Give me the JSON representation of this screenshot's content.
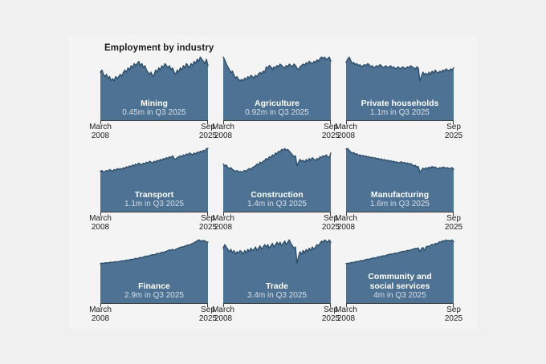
{
  "title": "Employment by industry",
  "colors": {
    "background": "#f0f0f0",
    "card": "#f4f4f4",
    "area_fill": "#4d7293",
    "area_stroke": "#2e4f6b",
    "axis": "#3c3c3c",
    "axis_text": "#1d1d1d",
    "series_name_text": "#ffffff",
    "series_value_text": "#ffffffc4"
  },
  "axis": {
    "left_line1": "March",
    "left_line2": "2008",
    "right_line1": "Sep",
    "right_line2": "2025"
  },
  "chart_data": {
    "type": "area",
    "title": "Employment by industry",
    "layout": "3x3 small multiples",
    "x_range": [
      "March 2008",
      "Sep 2025"
    ],
    "frequency": "quarterly",
    "unit": "millions of people",
    "grid": "off",
    "legend": "none",
    "series": [
      {
        "name": "Mining",
        "value_label": "0.45m in Q3 2025",
        "latest_value_m": 0.45,
        "values": [
          0.42,
          0.43,
          0.41,
          0.4,
          0.41,
          0.39,
          0.4,
          0.38,
          0.39,
          0.38,
          0.4,
          0.39,
          0.4,
          0.41,
          0.4,
          0.42,
          0.43,
          0.42,
          0.44,
          0.43,
          0.45,
          0.44,
          0.46,
          0.45,
          0.46,
          0.47,
          0.45,
          0.46,
          0.44,
          0.45,
          0.43,
          0.42,
          0.41,
          0.42,
          0.4,
          0.41,
          0.43,
          0.42,
          0.44,
          0.43,
          0.45,
          0.44,
          0.46,
          0.45,
          0.44,
          0.45,
          0.43,
          0.44,
          0.42,
          0.41,
          0.43,
          0.42,
          0.44,
          0.43,
          0.45,
          0.44,
          0.46,
          0.45,
          0.44,
          0.46,
          0.45,
          0.47,
          0.46,
          0.48,
          0.47,
          0.49,
          0.48,
          0.47,
          0.46,
          0.48,
          0.45
        ]
      },
      {
        "name": "Agriculture",
        "value_label": "0.92m in Q3 2025",
        "latest_value_m": 0.92,
        "values": [
          0.95,
          0.93,
          0.9,
          0.88,
          0.86,
          0.84,
          0.85,
          0.82,
          0.8,
          0.81,
          0.79,
          0.78,
          0.79,
          0.78,
          0.8,
          0.79,
          0.81,
          0.8,
          0.82,
          0.81,
          0.8,
          0.82,
          0.81,
          0.83,
          0.84,
          0.83,
          0.85,
          0.84,
          0.88,
          0.87,
          0.89,
          0.88,
          0.86,
          0.88,
          0.87,
          0.89,
          0.88,
          0.9,
          0.89,
          0.88,
          0.87,
          0.89,
          0.88,
          0.9,
          0.89,
          0.88,
          0.9,
          0.89,
          0.87,
          0.86,
          0.88,
          0.89,
          0.9,
          0.89,
          0.91,
          0.9,
          0.92,
          0.91,
          0.9,
          0.92,
          0.91,
          0.93,
          0.92,
          0.94,
          0.95,
          0.94,
          0.95,
          0.93,
          0.94,
          0.95,
          0.92
        ]
      },
      {
        "name": "Private households",
        "value_label": "1.1m in Q3 2025",
        "latest_value_m": 1.1,
        "values": [
          1.15,
          1.18,
          1.2,
          1.17,
          1.14,
          1.15,
          1.13,
          1.14,
          1.12,
          1.13,
          1.11,
          1.12,
          1.13,
          1.12,
          1.14,
          1.13,
          1.11,
          1.12,
          1.1,
          1.11,
          1.12,
          1.11,
          1.13,
          1.12,
          1.1,
          1.11,
          1.12,
          1.1,
          1.11,
          1.12,
          1.1,
          1.11,
          1.09,
          1.1,
          1.11,
          1.09,
          1.1,
          1.11,
          1.09,
          1.1,
          1.11,
          1.1,
          1.12,
          1.11,
          1.1,
          1.09,
          1.11,
          1.1,
          0.98,
          1.02,
          1.06,
          1.04,
          1.05,
          1.03,
          1.06,
          1.04,
          1.07,
          1.05,
          1.08,
          1.06,
          1.05,
          1.07,
          1.06,
          1.08,
          1.07,
          1.09,
          1.08,
          1.07,
          1.09,
          1.08,
          1.1
        ]
      },
      {
        "name": "Transport",
        "value_label": "1.1m in Q3 2025",
        "latest_value_m": 1.1,
        "values": [
          0.85,
          0.86,
          0.84,
          0.85,
          0.86,
          0.85,
          0.87,
          0.86,
          0.85,
          0.87,
          0.86,
          0.88,
          0.87,
          0.88,
          0.87,
          0.89,
          0.88,
          0.9,
          0.89,
          0.91,
          0.9,
          0.92,
          0.91,
          0.93,
          0.92,
          0.94,
          0.93,
          0.92,
          0.94,
          0.93,
          0.95,
          0.94,
          0.96,
          0.95,
          0.94,
          0.96,
          0.95,
          0.97,
          0.96,
          0.98,
          0.97,
          0.99,
          0.98,
          1.0,
          0.99,
          1.01,
          1.0,
          1.02,
          0.99,
          0.98,
          1.0,
          1.01,
          1.02,
          1.01,
          1.03,
          1.02,
          1.04,
          1.03,
          1.05,
          1.04,
          1.03,
          1.05,
          1.04,
          1.06,
          1.05,
          1.07,
          1.06,
          1.08,
          1.07,
          1.1,
          1.1
        ]
      },
      {
        "name": "Construction",
        "value_label": "1.4m in Q3 2025",
        "latest_value_m": 1.4,
        "values": [
          1.28,
          1.26,
          1.27,
          1.24,
          1.23,
          1.24,
          1.22,
          1.21,
          1.2,
          1.21,
          1.19,
          1.2,
          1.19,
          1.2,
          1.21,
          1.2,
          1.22,
          1.23,
          1.22,
          1.24,
          1.25,
          1.26,
          1.28,
          1.27,
          1.3,
          1.29,
          1.31,
          1.32,
          1.34,
          1.33,
          1.36,
          1.35,
          1.38,
          1.37,
          1.4,
          1.39,
          1.42,
          1.41,
          1.44,
          1.43,
          1.45,
          1.43,
          1.44,
          1.42,
          1.4,
          1.38,
          1.36,
          1.37,
          1.26,
          1.3,
          1.33,
          1.31,
          1.32,
          1.3,
          1.33,
          1.31,
          1.34,
          1.32,
          1.35,
          1.33,
          1.32,
          1.34,
          1.33,
          1.36,
          1.35,
          1.37,
          1.36,
          1.38,
          1.36,
          1.35,
          1.4
        ]
      },
      {
        "name": "Manufacturing",
        "value_label": "1.6m in Q3 2025",
        "latest_value_m": 1.6,
        "values": [
          1.95,
          1.96,
          1.93,
          1.9,
          1.88,
          1.89,
          1.86,
          1.87,
          1.84,
          1.85,
          1.83,
          1.84,
          1.82,
          1.83,
          1.81,
          1.82,
          1.8,
          1.81,
          1.79,
          1.8,
          1.78,
          1.79,
          1.77,
          1.78,
          1.76,
          1.77,
          1.75,
          1.76,
          1.74,
          1.75,
          1.73,
          1.74,
          1.72,
          1.73,
          1.71,
          1.72,
          1.73,
          1.71,
          1.72,
          1.7,
          1.71,
          1.69,
          1.7,
          1.68,
          1.66,
          1.67,
          1.64,
          1.65,
          1.55,
          1.58,
          1.62,
          1.6,
          1.63,
          1.61,
          1.64,
          1.62,
          1.65,
          1.63,
          1.64,
          1.62,
          1.61,
          1.63,
          1.62,
          1.64,
          1.63,
          1.62,
          1.63,
          1.61,
          1.62,
          1.63,
          1.6
        ]
      },
      {
        "name": "Finance",
        "value_label": "2.9m in Q3 2025",
        "latest_value_m": 2.9,
        "values": [
          2.0,
          2.02,
          2.01,
          2.03,
          2.04,
          2.03,
          2.05,
          2.06,
          2.05,
          2.07,
          2.08,
          2.07,
          2.09,
          2.1,
          2.12,
          2.11,
          2.13,
          2.15,
          2.14,
          2.16,
          2.18,
          2.17,
          2.2,
          2.22,
          2.21,
          2.24,
          2.26,
          2.25,
          2.28,
          2.3,
          2.32,
          2.31,
          2.34,
          2.36,
          2.38,
          2.37,
          2.4,
          2.43,
          2.42,
          2.45,
          2.48,
          2.47,
          2.5,
          2.52,
          2.55,
          2.58,
          2.57,
          2.6,
          2.56,
          2.6,
          2.63,
          2.66,
          2.68,
          2.71,
          2.7,
          2.74,
          2.76,
          2.79,
          2.78,
          2.82,
          2.85,
          2.88,
          2.92,
          2.96,
          3.0,
          2.97,
          2.94,
          2.98,
          2.95,
          2.92,
          2.9
        ]
      },
      {
        "name": "Trade",
        "value_label": "3.4m in Q3 2025",
        "latest_value_m": 3.4,
        "values": [
          3.35,
          3.38,
          3.36,
          3.34,
          3.32,
          3.34,
          3.31,
          3.33,
          3.3,
          3.32,
          3.31,
          3.33,
          3.32,
          3.3,
          3.33,
          3.31,
          3.34,
          3.32,
          3.35,
          3.33,
          3.34,
          3.36,
          3.33,
          3.35,
          3.37,
          3.34,
          3.36,
          3.38,
          3.36,
          3.38,
          3.35,
          3.37,
          3.39,
          3.36,
          3.38,
          3.4,
          3.38,
          3.4,
          3.37,
          3.39,
          3.41,
          3.38,
          3.4,
          3.42,
          3.39,
          3.37,
          3.35,
          3.36,
          3.22,
          3.28,
          3.32,
          3.3,
          3.33,
          3.31,
          3.34,
          3.32,
          3.35,
          3.33,
          3.36,
          3.34,
          3.36,
          3.38,
          3.37,
          3.39,
          3.41,
          3.4,
          3.42,
          3.41,
          3.4,
          3.42,
          3.4
        ]
      },
      {
        "name": "Community and social services",
        "value_label": "4m in Q3 2025",
        "latest_value_m": 4.0,
        "values": [
          3.02,
          3.04,
          3.03,
          3.06,
          3.08,
          3.07,
          3.1,
          3.12,
          3.11,
          3.14,
          3.16,
          3.15,
          3.18,
          3.2,
          3.22,
          3.21,
          3.24,
          3.26,
          3.28,
          3.27,
          3.3,
          3.33,
          3.32,
          3.35,
          3.37,
          3.36,
          3.39,
          3.41,
          3.43,
          3.45,
          3.44,
          3.47,
          3.49,
          3.48,
          3.51,
          3.53,
          3.55,
          3.57,
          3.56,
          3.59,
          3.61,
          3.6,
          3.63,
          3.65,
          3.67,
          3.7,
          3.69,
          3.72,
          3.55,
          3.68,
          3.74,
          3.6,
          3.76,
          3.8,
          3.78,
          3.84,
          3.88,
          3.85,
          3.92,
          3.9,
          3.95,
          4.0,
          3.97,
          4.05,
          4.02,
          4.08,
          4.04,
          4.06,
          4.03,
          4.08,
          4.0
        ]
      }
    ]
  }
}
